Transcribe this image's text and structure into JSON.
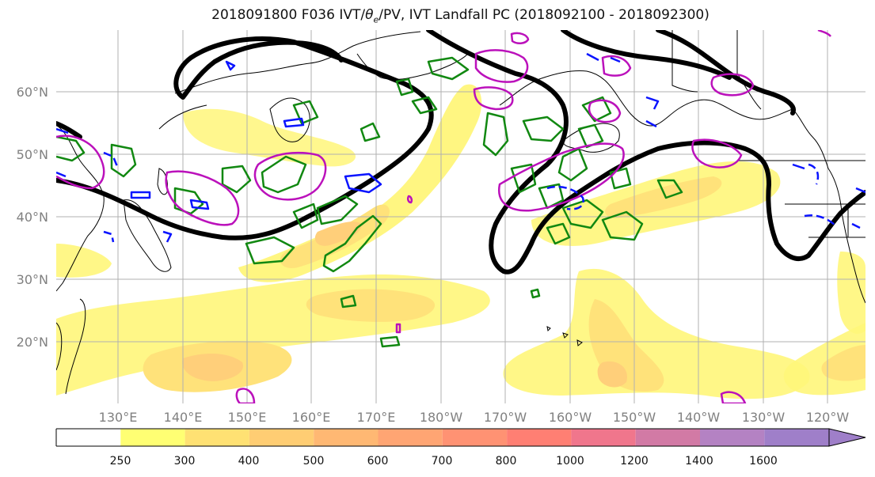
{
  "title": "2018091800 F036 IVT/θe/PV, IVT Landfall PC (2018092100 - 2018092300)",
  "title_parts": {
    "prefix": "2018091800 F036 IVT/",
    "theta": "θ",
    "theta_sub": "e",
    "suffix": "/PV, IVT Landfall PC (2018092100 - 2018092300)"
  },
  "map": {
    "lat_labels": [
      "60°N",
      "50°N",
      "40°N",
      "30°N",
      "20°N"
    ],
    "lon_labels": [
      "130°E",
      "140°E",
      "150°E",
      "160°E",
      "170°E",
      "180°W",
      "170°W",
      "160°W",
      "150°W",
      "140°W",
      "130°W",
      "120°W"
    ],
    "colors": {
      "land_outline": "#000000",
      "grid": "#b0b0b0",
      "thick_contour": "#000000",
      "green_contour": "#118811",
      "blue_contour": "#0a14ff",
      "magenta_contour": "#bb11bb",
      "ivt_250": "#fff67a",
      "ivt_300": "#ffe27a",
      "ivt_400": "#ffcf7a",
      "ivt_500": "#ffbb72"
    }
  },
  "colorbar": {
    "ticks": [
      "250",
      "300",
      "400",
      "500",
      "600",
      "700",
      "800",
      "1000",
      "1200",
      "1400",
      "1600"
    ],
    "colors": [
      "#ffffff",
      "#ffff73",
      "#ffe173",
      "#ffcd73",
      "#ffb873",
      "#ffa573",
      "#ff9273",
      "#ff7f73",
      "#f0768c",
      "#d27aa5",
      "#b482c3",
      "#9f7fc9"
    ]
  }
}
